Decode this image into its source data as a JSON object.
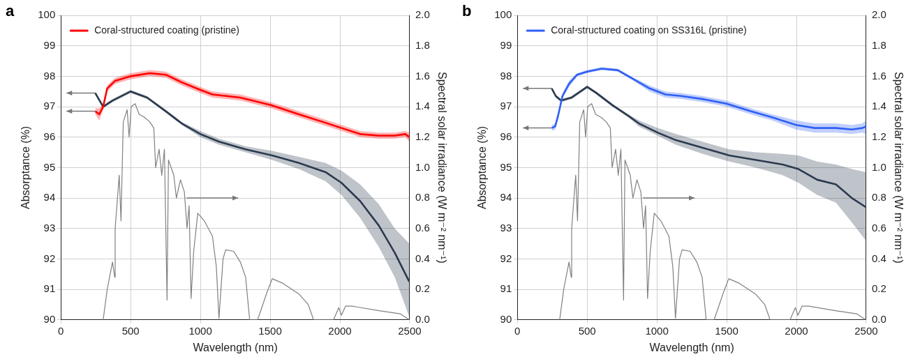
{
  "chart_data": [
    {
      "type": "line",
      "title": "a",
      "xlabel": "Wavelength (nm)",
      "ylabel": "Absorptance (%)",
      "y2label": "Spectral solar irradiance (W m⁻² nm⁻¹)",
      "xlim": [
        0,
        2500
      ],
      "xticks": [
        0,
        500,
        1000,
        1500,
        2000,
        2500
      ],
      "ylim": [
        90,
        100
      ],
      "yticks": [
        90,
        91,
        92,
        93,
        94,
        95,
        96,
        97,
        98,
        99,
        100
      ],
      "y2lim": [
        0,
        2.0
      ],
      "y2ticks": [
        {
          "value": 0,
          "label": "0.0"
        },
        {
          "value": 0.2,
          "label": "0.2"
        },
        {
          "value": 0.4,
          "label": "0.4"
        },
        {
          "value": 0.6,
          "label": "0.6"
        },
        {
          "value": 0.8,
          "label": "0.8"
        },
        {
          "value": 1,
          "label": "1.0"
        },
        {
          "value": 1.2,
          "label": "1.2"
        },
        {
          "value": 1.4,
          "label": "1.4"
        },
        {
          "value": 1.6,
          "label": "1.6"
        },
        {
          "value": 1.8,
          "label": "1.8"
        },
        {
          "value": 2,
          "label": "2.0"
        }
      ],
      "grid": true,
      "legend": "top left",
      "marker": "none",
      "line_style": "solid",
      "series": [
        {
          "name": "Coral-structured coating (pristine)",
          "color": "#ff0000",
          "x": [
            246,
            275,
            303,
            332,
            389,
            500,
            637,
            752,
            866,
            1000,
            1086,
            1286,
            1505,
            1706,
            1877,
            2011,
            2145,
            2278,
            2393,
            2469,
            2497
          ],
          "values": [
            96.85,
            96.75,
            97.0,
            97.6,
            97.85,
            98.0,
            98.1,
            98.05,
            97.8,
            97.55,
            97.4,
            97.3,
            97.05,
            96.75,
            96.5,
            96.3,
            96.1,
            96.05,
            96.05,
            96.1,
            96.0
          ],
          "upper": [
            96.95,
            96.95,
            97.1,
            97.7,
            97.95,
            98.1,
            98.2,
            98.15,
            97.9,
            97.65,
            97.5,
            97.4,
            97.15,
            96.85,
            96.6,
            96.4,
            96.2,
            96.15,
            96.15,
            96.2,
            96.15
          ],
          "lower": [
            96.75,
            96.55,
            96.9,
            97.5,
            97.75,
            97.9,
            98.0,
            97.95,
            97.7,
            97.45,
            97.3,
            97.2,
            96.95,
            96.65,
            96.4,
            96.2,
            96.0,
            95.95,
            95.95,
            96.0,
            95.85
          ]
        },
        {
          "color": "#2b3a4e",
          "x": [
            246,
            303,
            370,
            500,
            618,
            752,
            866,
            1000,
            1134,
            1324,
            1515,
            1706,
            1897,
            2011,
            2145,
            2278,
            2393,
            2497
          ],
          "values": [
            97.45,
            97.0,
            97.2,
            97.5,
            97.3,
            96.85,
            96.45,
            96.1,
            95.85,
            95.6,
            95.4,
            95.15,
            94.85,
            94.5,
            93.9,
            93.1,
            92.2,
            91.25
          ],
          "upper": [
            97.5,
            97.05,
            97.25,
            97.55,
            97.35,
            96.9,
            96.5,
            96.2,
            95.95,
            95.7,
            95.55,
            95.35,
            95.15,
            94.9,
            94.45,
            93.8,
            93.0,
            92.5
          ],
          "lower": [
            97.4,
            96.95,
            97.15,
            97.45,
            97.25,
            96.8,
            96.4,
            96.0,
            95.75,
            95.5,
            95.25,
            94.95,
            94.55,
            94.1,
            93.35,
            92.4,
            91.4,
            90.1
          ]
        },
        {
          "color": "#808080",
          "axis": "y2",
          "x": [
            303,
            332,
            370,
            386,
            389,
            418,
            431,
            447,
            475,
            489,
            504,
            532,
            561,
            599,
            637,
            666,
            679,
            704,
            723,
            742,
            761,
            771,
            809,
            828,
            857,
            885,
            904,
            919,
            933,
            952,
            981,
            1028,
            1086,
            1114,
            1133,
            1162,
            1181,
            1238,
            1286,
            1324,
            1353,
            1410,
            1477,
            1515,
            1591,
            1706,
            1773,
            1811,
            1954,
            1992,
            2011,
            2040,
            2087,
            2278,
            2431,
            2497
          ],
          "values": [
            0,
            0.2,
            0.38,
            0.28,
            0.6,
            0.95,
            0.65,
            1.3,
            1.38,
            1.2,
            1.4,
            1.42,
            1.35,
            1.33,
            1.3,
            1.26,
            1.0,
            1.12,
            0.95,
            1.12,
            0.13,
            1.05,
            0.95,
            0.8,
            0.92,
            0.84,
            0.6,
            0.75,
            0.14,
            0.45,
            0.7,
            0.65,
            0.55,
            0.35,
            0.01,
            0.4,
            0.46,
            0.45,
            0.38,
            0.28,
            0,
            0,
            0.18,
            0.27,
            0.24,
            0.17,
            0.1,
            0,
            0,
            0.08,
            0.03,
            0.09,
            0.09,
            0.06,
            0.04,
            0
          ]
        }
      ]
    },
    {
      "type": "line",
      "title": "b",
      "xlabel": "Wavelength (nm)",
      "ylabel": "Absorptance (%)",
      "y2label": "Spectral solar irradiance (W m⁻² nm⁻¹)",
      "xlim": [
        0,
        2500
      ],
      "xticks": [
        0,
        500,
        1000,
        1500,
        2000,
        2500
      ],
      "ylim": [
        90,
        100
      ],
      "yticks": [
        90,
        91,
        92,
        93,
        94,
        95,
        96,
        97,
        98,
        99,
        100
      ],
      "y2lim": [
        0,
        2.0
      ],
      "y2ticks": [
        {
          "value": 0,
          "label": "0.0"
        },
        {
          "value": 0.2,
          "label": "0.2"
        },
        {
          "value": 0.4,
          "label": "0.4"
        },
        {
          "value": 0.6,
          "label": "0.6"
        },
        {
          "value": 0.8,
          "label": "0.8"
        },
        {
          "value": 1,
          "label": "1.0"
        },
        {
          "value": 1.2,
          "label": "1.2"
        },
        {
          "value": 1.4,
          "label": "1.4"
        },
        {
          "value": 1.6,
          "label": "1.6"
        },
        {
          "value": 1.8,
          "label": "1.8"
        },
        {
          "value": 2,
          "label": "2.0"
        }
      ],
      "grid": true,
      "legend": "top left",
      "marker": "none",
      "line_style": "solid",
      "series": [
        {
          "name": "Coral-structured coating on SS316L (pristine)",
          "color": "#2f5ff5",
          "x": [
            246,
            271,
            294,
            323,
            370,
            428,
            500,
            604,
            719,
            833,
            947,
            1061,
            1175,
            1328,
            1500,
            1672,
            1825,
            1997,
            2130,
            2283,
            2397,
            2473,
            2498
          ],
          "values": [
            96.3,
            96.35,
            96.75,
            97.35,
            97.75,
            98.05,
            98.15,
            98.25,
            98.2,
            97.9,
            97.6,
            97.4,
            97.35,
            97.25,
            97.1,
            96.85,
            96.65,
            96.4,
            96.3,
            96.3,
            96.25,
            96.3,
            96.35
          ],
          "upper": [
            96.4,
            96.45,
            96.85,
            97.45,
            97.85,
            98.1,
            98.2,
            98.3,
            98.25,
            97.95,
            97.7,
            97.5,
            97.45,
            97.35,
            97.2,
            96.95,
            96.75,
            96.55,
            96.45,
            96.45,
            96.4,
            96.45,
            96.55
          ],
          "lower": [
            96.2,
            96.25,
            96.65,
            97.25,
            97.65,
            98.0,
            98.1,
            98.2,
            98.15,
            97.85,
            97.5,
            97.3,
            97.25,
            97.15,
            97.0,
            96.75,
            96.55,
            96.25,
            96.15,
            96.15,
            96.1,
            96.15,
            96.1
          ]
        },
        {
          "color": "#2b3a4e",
          "x": [
            246,
            275,
            313,
            389,
            500,
            566,
            681,
            795,
            871,
            1004,
            1137,
            1328,
            1519,
            1710,
            1901,
            2015,
            2149,
            2283,
            2397,
            2498
          ],
          "values": [
            97.6,
            97.35,
            97.2,
            97.3,
            97.65,
            97.45,
            97.05,
            96.7,
            96.45,
            96.15,
            95.9,
            95.65,
            95.4,
            95.25,
            95.1,
            94.95,
            94.6,
            94.45,
            94.0,
            93.7
          ],
          "upper": [
            97.65,
            97.4,
            97.25,
            97.35,
            97.7,
            97.5,
            97.1,
            96.75,
            96.55,
            96.3,
            96.1,
            95.85,
            95.6,
            95.5,
            95.45,
            95.4,
            95.2,
            95.1,
            94.95,
            94.85
          ],
          "lower": [
            97.55,
            97.3,
            97.15,
            97.25,
            97.6,
            97.4,
            97.0,
            96.65,
            96.35,
            96.05,
            95.75,
            95.45,
            95.2,
            95.0,
            94.75,
            94.5,
            94.1,
            93.85,
            93.2,
            92.6
          ]
        },
        {
          "color": "#808080",
          "axis": "y2",
          "x": [
            303,
            332,
            370,
            386,
            389,
            418,
            431,
            447,
            475,
            489,
            504,
            532,
            561,
            599,
            637,
            666,
            679,
            704,
            723,
            742,
            761,
            771,
            809,
            828,
            857,
            885,
            904,
            919,
            933,
            952,
            981,
            1028,
            1086,
            1114,
            1133,
            1162,
            1181,
            1238,
            1286,
            1324,
            1353,
            1410,
            1477,
            1515,
            1591,
            1706,
            1773,
            1811,
            1954,
            1992,
            2011,
            2040,
            2087,
            2278,
            2431,
            2497
          ],
          "values": [
            0,
            0.2,
            0.38,
            0.28,
            0.6,
            0.95,
            0.65,
            1.3,
            1.38,
            1.2,
            1.4,
            1.42,
            1.35,
            1.33,
            1.3,
            1.26,
            1.0,
            1.12,
            0.95,
            1.12,
            0.13,
            1.05,
            0.95,
            0.8,
            0.92,
            0.84,
            0.6,
            0.75,
            0.14,
            0.45,
            0.7,
            0.65,
            0.55,
            0.35,
            0.01,
            0.4,
            0.46,
            0.45,
            0.38,
            0.28,
            0,
            0,
            0.18,
            0.27,
            0.24,
            0.17,
            0.1,
            0,
            0,
            0.08,
            0.03,
            0.09,
            0.09,
            0.06,
            0.04,
            0
          ]
        }
      ]
    }
  ]
}
